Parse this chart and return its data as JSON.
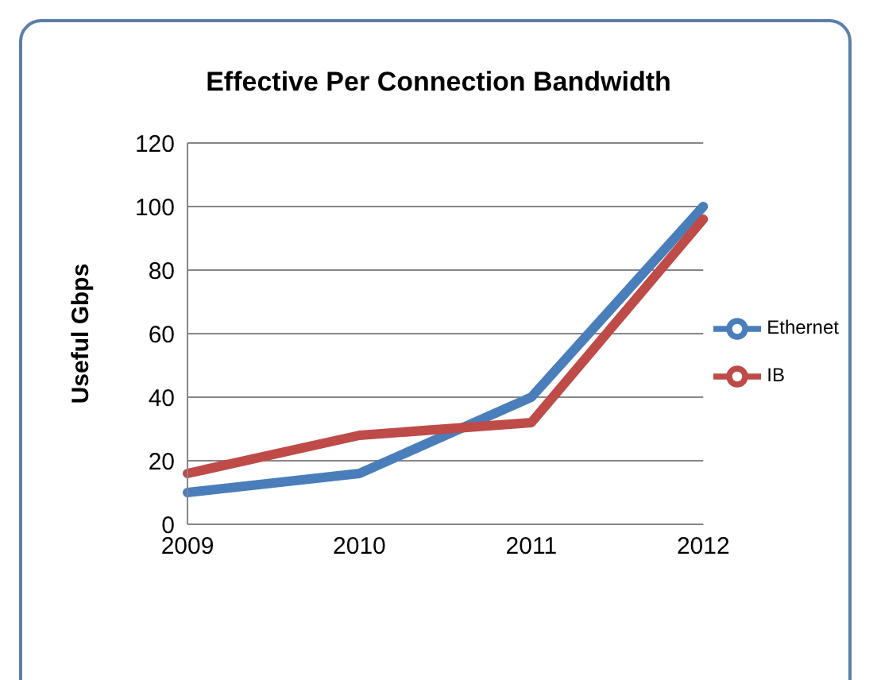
{
  "chart_data": {
    "type": "line",
    "title": "Effective Per Connection Bandwidth",
    "ylabel": "Useful  Gbps",
    "categories": [
      "2009",
      "2010",
      "2011",
      "2012"
    ],
    "series": [
      {
        "name": "Ethernet",
        "color": "#4a7ebb",
        "values": [
          10,
          16,
          40,
          100
        ]
      },
      {
        "name": "IB",
        "color": "#be4b48",
        "values": [
          16,
          28,
          32,
          96
        ]
      }
    ],
    "ylim": [
      0,
      120
    ],
    "yticks": [
      0,
      20,
      40,
      60,
      80,
      100,
      120
    ],
    "grid": "y",
    "legend": "right",
    "marker": "none",
    "line_style": "solid"
  }
}
